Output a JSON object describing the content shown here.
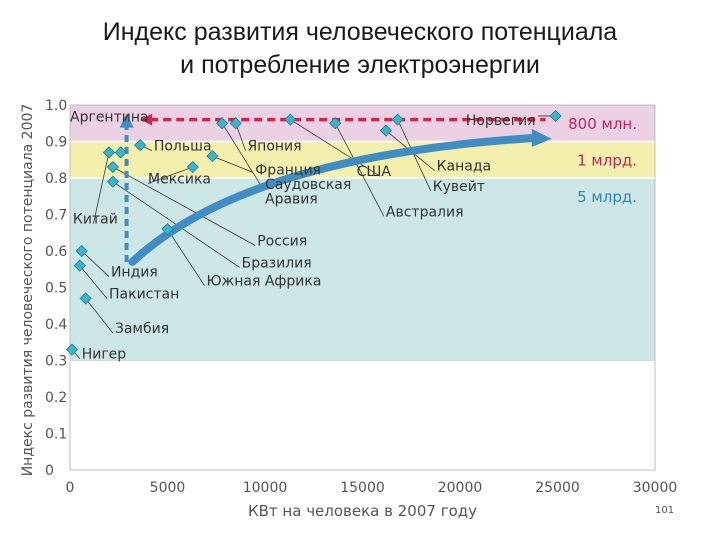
{
  "title_lines": [
    "Индекс развития человеческого потенциала",
    "и потребление электроэнергии"
  ],
  "page_number": "101",
  "colors": {
    "band_top": "#ecd0e4",
    "band_mid": "#f3efac",
    "band_low": "#cde6e6",
    "marker": "#3bb4cc",
    "marker_stroke": "#1f7e93",
    "arrow": "#3f8dc2",
    "dash_red": "#d8224e",
    "dash_blue": "#3f8dc2",
    "axis_text": "#555555",
    "label_text": "#333333"
  },
  "chart_data": {
    "type": "scatter",
    "xlabel": "КВт на человека в 2007 году",
    "ylabel": "Индекс развития человеческого потенциала 2007",
    "xlim": [
      0,
      30000
    ],
    "ylim": [
      0,
      1.0
    ],
    "xticks": [
      0,
      5000,
      10000,
      15000,
      20000,
      25000,
      30000
    ],
    "yticks": [
      0,
      0.1,
      0.2,
      0.3,
      0.4,
      0.5,
      0.6,
      0.7,
      0.8,
      0.9,
      1.0
    ],
    "ytick_labels": [
      "0",
      "0.1",
      "0.2",
      "0.3",
      "0.4",
      "0.5",
      "0.6",
      "0.7",
      "0.8",
      "0.9",
      "1.0"
    ],
    "bands": [
      {
        "from": 0.9,
        "to": 1.0,
        "color": "band_top",
        "label": "800 млн.",
        "label_color": "#c0265b"
      },
      {
        "from": 0.8,
        "to": 0.9,
        "color": "band_mid",
        "label": "1 млрд.",
        "label_color": "#c0265b"
      },
      {
        "from": 0.3,
        "to": 0.8,
        "color": "band_low",
        "label": "5 млрд.",
        "label_color": "#2f86b8"
      }
    ],
    "points": [
      {
        "x": 2600,
        "y": 0.87,
        "label": "Аргентина"
      },
      {
        "x": 3600,
        "y": 0.89,
        "label": "Польша"
      },
      {
        "x": 8500,
        "y": 0.95,
        "label": "Япония"
      },
      {
        "x": 7300,
        "y": 0.86,
        "label": "Франция"
      },
      {
        "x": 6300,
        "y": 0.83,
        "label": "Мексика"
      },
      {
        "x": 7800,
        "y": 0.95,
        "label": "Саудовская Аравия"
      },
      {
        "x": 5000,
        "y": 0.66,
        "label": "Россия"
      },
      {
        "x": 2200,
        "y": 0.79,
        "label": "Бразилия"
      },
      {
        "x": 2200,
        "y": 0.83,
        "label": "Южная Африка"
      },
      {
        "x": 2000,
        "y": 0.87,
        "label": "Китай"
      },
      {
        "x": 600,
        "y": 0.6,
        "label": "Индия"
      },
      {
        "x": 500,
        "y": 0.56,
        "label": "Пакистан"
      },
      {
        "x": 800,
        "y": 0.47,
        "label": "Замбия"
      },
      {
        "x": 100,
        "y": 0.33,
        "label": "Нигер"
      },
      {
        "x": 11300,
        "y": 0.96,
        "label": "США"
      },
      {
        "x": 16200,
        "y": 0.93,
        "label": "Канада"
      },
      {
        "x": 16800,
        "y": 0.96,
        "label": "Кувейт"
      },
      {
        "x": 13600,
        "y": 0.95,
        "label": "Австралия"
      },
      {
        "x": 24900,
        "y": 0.97,
        "label": "Норвегия"
      }
    ],
    "labels": [
      {
        "text": "Аргентина",
        "x": 0,
        "y": 0.955
      },
      {
        "text": "Польша",
        "x": 4300,
        "y": 0.875
      },
      {
        "text": "Япония",
        "x": 9100,
        "y": 0.875
      },
      {
        "text": "Франция",
        "x": 9500,
        "y": 0.81
      },
      {
        "text": "Мексика",
        "x": 4000,
        "y": 0.785
      },
      {
        "text": "Саудовская",
        "x": 10000,
        "y": 0.77
      },
      {
        "text": "Аравия",
        "x": 10000,
        "y": 0.73
      },
      {
        "text": "Россия",
        "x": 9600,
        "y": 0.615
      },
      {
        "text": "Бразилия",
        "x": 8800,
        "y": 0.555
      },
      {
        "text": "Южная Африка",
        "x": 7000,
        "y": 0.505
      },
      {
        "text": "Китай",
        "x": 150,
        "y": 0.675
      },
      {
        "text": "Индия",
        "x": 2100,
        "y": 0.53
      },
      {
        "text": "Пакистан",
        "x": 2000,
        "y": 0.47
      },
      {
        "text": "Замбия",
        "x": 2300,
        "y": 0.375
      },
      {
        "text": "Нигер",
        "x": 600,
        "y": 0.305
      },
      {
        "text": "США",
        "x": 14700,
        "y": 0.805
      },
      {
        "text": "Канада",
        "x": 18800,
        "y": 0.82
      },
      {
        "text": "Кувейт",
        "x": 18600,
        "y": 0.765
      },
      {
        "text": "Австралия",
        "x": 16200,
        "y": 0.695
      },
      {
        "text": "Норвегия",
        "x": 20300,
        "y": 0.945
      }
    ],
    "leaders": [
      {
        "from": [
          24900,
          0.97
        ],
        "to": [
          24000,
          0.97
        ]
      },
      {
        "from": [
          2600,
          0.87
        ],
        "to": [
          2600,
          0.875
        ]
      },
      {
        "from": [
          3600,
          0.89
        ],
        "to": [
          4200,
          0.875
        ]
      },
      {
        "from": [
          8500,
          0.95
        ],
        "to": [
          9000,
          0.875
        ]
      },
      {
        "from": [
          7300,
          0.86
        ],
        "to": [
          9400,
          0.815
        ]
      },
      {
        "from": [
          6300,
          0.83
        ],
        "to": [
          4000,
          0.785
        ]
      },
      {
        "from": [
          7800,
          0.95
        ],
        "to": [
          9900,
          0.77
        ]
      },
      {
        "from": [
          2200,
          0.83
        ],
        "to": [
          9500,
          0.615
        ]
      },
      {
        "from": [
          2200,
          0.79
        ],
        "to": [
          8700,
          0.555
        ]
      },
      {
        "from": [
          5000,
          0.66
        ],
        "to": [
          6900,
          0.505
        ]
      },
      {
        "from": [
          2000,
          0.87
        ],
        "to": [
          1200,
          0.675
        ]
      },
      {
        "from": [
          600,
          0.6
        ],
        "to": [
          2000,
          0.53
        ]
      },
      {
        "from": [
          500,
          0.56
        ],
        "to": [
          1900,
          0.47
        ]
      },
      {
        "from": [
          800,
          0.47
        ],
        "to": [
          2200,
          0.375
        ]
      },
      {
        "from": [
          100,
          0.33
        ],
        "to": [
          500,
          0.305
        ]
      },
      {
        "from": [
          11300,
          0.96
        ],
        "to": [
          15900,
          0.805
        ]
      },
      {
        "from": [
          16200,
          0.93
        ],
        "to": [
          18700,
          0.82
        ]
      },
      {
        "from": [
          16800,
          0.96
        ],
        "to": [
          18500,
          0.765
        ]
      },
      {
        "from": [
          13600,
          0.95
        ],
        "to": [
          16100,
          0.695
        ]
      }
    ],
    "dashed_vertical": {
      "x": 2900,
      "from": 0.57,
      "to": 0.96
    },
    "dashed_horizontal": {
      "y": 0.96,
      "from": 3600,
      "to": 24900
    },
    "trend_arrow": {
      "start": [
        3200,
        0.57
      ],
      "control": [
        9000,
        0.86
      ],
      "end": [
        24400,
        0.91
      ]
    }
  }
}
